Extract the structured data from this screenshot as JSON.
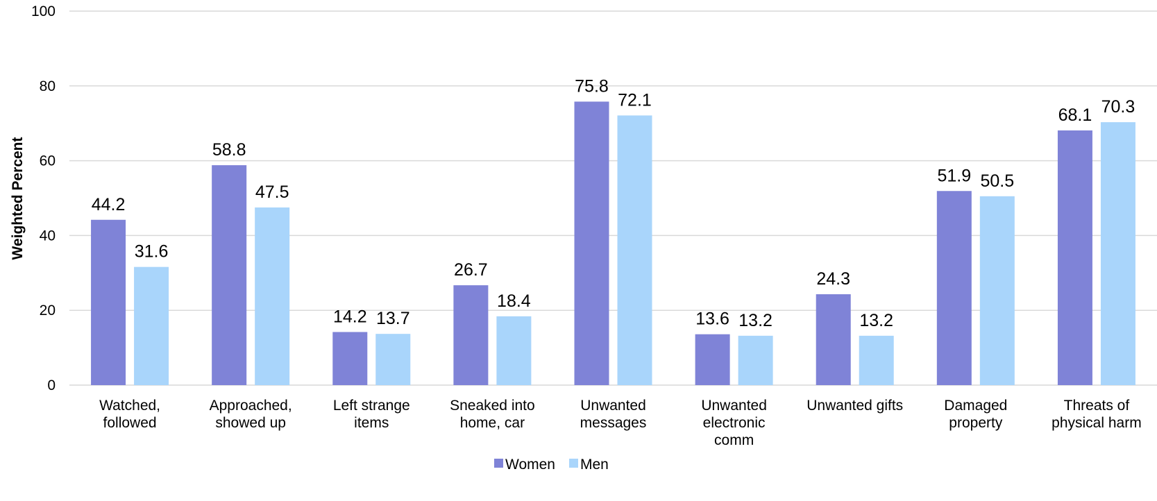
{
  "chart_data": {
    "type": "bar",
    "title": "",
    "xlabel": "",
    "ylabel": "Weighted Percent",
    "ylim": [
      0,
      100
    ],
    "yticks": [
      "0",
      "20",
      "40",
      "60",
      "80",
      "100"
    ],
    "grid": true,
    "legend_position": "bottom",
    "categories": [
      [
        "Watched,",
        "followed"
      ],
      [
        "Approached,",
        "showed up"
      ],
      [
        "Left strange",
        "items"
      ],
      [
        "Sneaked into",
        "home, car"
      ],
      [
        "Unwanted",
        "messages"
      ],
      [
        "Unwanted",
        "electronic",
        "comm"
      ],
      [
        "Unwanted gifts"
      ],
      [
        "Damaged",
        "property"
      ],
      [
        "Threats of",
        "physical harm"
      ]
    ],
    "series": [
      {
        "name": "Women",
        "color": "#7f83d7",
        "values": [
          44.2,
          58.8,
          14.2,
          26.7,
          75.8,
          13.6,
          24.3,
          51.9,
          68.1
        ]
      },
      {
        "name": "Men",
        "color": "#a9d5fb",
        "values": [
          31.6,
          47.5,
          13.7,
          18.4,
          72.1,
          13.2,
          13.2,
          50.5,
          70.3
        ]
      }
    ]
  }
}
